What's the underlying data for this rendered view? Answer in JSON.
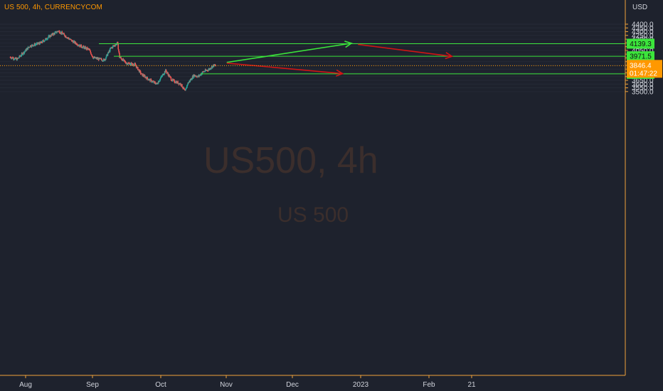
{
  "header": {
    "title": "US 500, 4h, CURRENCYCOM"
  },
  "watermark": {
    "symbol": "US500, 4h",
    "name": "US 500"
  },
  "price_axis": {
    "currency": "USD",
    "ticks": [
      "4400.0",
      "4350.0",
      "4300.0",
      "4250.0",
      "4200.0",
      "4150.0",
      "4100.0",
      "4050.0",
      "4000.0",
      "3950.0",
      "3900.0",
      "3850.0",
      "3800.0",
      "3750.0",
      "3700.0",
      "3650.0",
      "3600.0",
      "3550.0",
      "3500.0"
    ]
  },
  "time_axis": {
    "labels": [
      "Aug",
      "Sep",
      "Oct",
      "Nov",
      "Dec",
      "2023",
      "Feb",
      "21"
    ]
  },
  "current_price": {
    "price": "3846.4",
    "countdown": "01:47:22",
    "color": "#ff9800"
  },
  "levels": [
    {
      "label": "4139.3",
      "value": 4139.3,
      "color": "#3be53b"
    },
    {
      "label": "3971.5",
      "value": 3971.5,
      "color": "#3be53b"
    },
    {
      "label": "3736.6",
      "value": 3736.6,
      "color": "#3be53b"
    }
  ],
  "colors": {
    "background": "#1e222d",
    "bull": "#26a69a",
    "bear": "#ef5350",
    "arrow_up": "#3be53b",
    "arrow_down": "#d01515"
  },
  "chart_data": {
    "type": "candlestick",
    "title": "US 500, 4h, CURRENCYCOM",
    "symbol": "US500",
    "timeframe": "4h",
    "ylim": [
      3480,
      4430
    ],
    "y_unit": "USD",
    "x_range": [
      "2022-07-25",
      "2023-02-25"
    ],
    "price_path": [
      {
        "date": "2022-07-25",
        "price": 3960
      },
      {
        "date": "2022-07-28",
        "price": 3930
      },
      {
        "date": "2022-08-03",
        "price": 4110
      },
      {
        "date": "2022-08-08",
        "price": 4150
      },
      {
        "date": "2022-08-12",
        "price": 4240
      },
      {
        "date": "2022-08-16",
        "price": 4310
      },
      {
        "date": "2022-08-18",
        "price": 4270
      },
      {
        "date": "2022-08-22",
        "price": 4180
      },
      {
        "date": "2022-08-26",
        "price": 4110
      },
      {
        "date": "2022-08-30",
        "price": 4060
      },
      {
        "date": "2022-09-01",
        "price": 3950
      },
      {
        "date": "2022-09-06",
        "price": 3920
      },
      {
        "date": "2022-09-09",
        "price": 4080
      },
      {
        "date": "2022-09-12",
        "price": 4150
      },
      {
        "date": "2022-09-13",
        "price": 3960
      },
      {
        "date": "2022-09-16",
        "price": 3880
      },
      {
        "date": "2022-09-20",
        "price": 3860
      },
      {
        "date": "2022-09-23",
        "price": 3730
      },
      {
        "date": "2022-09-27",
        "price": 3650
      },
      {
        "date": "2022-09-30",
        "price": 3600
      },
      {
        "date": "2022-10-04",
        "price": 3780
      },
      {
        "date": "2022-10-07",
        "price": 3650
      },
      {
        "date": "2022-10-11",
        "price": 3600
      },
      {
        "date": "2022-10-13",
        "price": 3500
      },
      {
        "date": "2022-10-14",
        "price": 3600
      },
      {
        "date": "2022-10-17",
        "price": 3720
      },
      {
        "date": "2022-10-19",
        "price": 3700
      },
      {
        "date": "2022-10-21",
        "price": 3760
      },
      {
        "date": "2022-10-24",
        "price": 3800
      },
      {
        "date": "2022-10-26",
        "price": 3850
      },
      {
        "date": "2022-10-27",
        "price": 3846.4
      }
    ],
    "levels": [
      4139.3,
      3971.5,
      3736.6
    ],
    "current_price": 3846.4,
    "arrows": [
      {
        "from": {
          "date": "2022-11-01",
          "price": 3890
        },
        "to": {
          "date": "2022-12-28",
          "price": 4145
        },
        "color": "#3be53b"
      },
      {
        "from": {
          "date": "2022-12-31",
          "price": 4130
        },
        "to": {
          "date": "2023-02-12",
          "price": 3970
        },
        "color": "#d01515"
      },
      {
        "from": {
          "date": "2022-11-01",
          "price": 3880
        },
        "to": {
          "date": "2022-12-24",
          "price": 3740
        },
        "color": "#d01515"
      }
    ],
    "grid": true
  }
}
